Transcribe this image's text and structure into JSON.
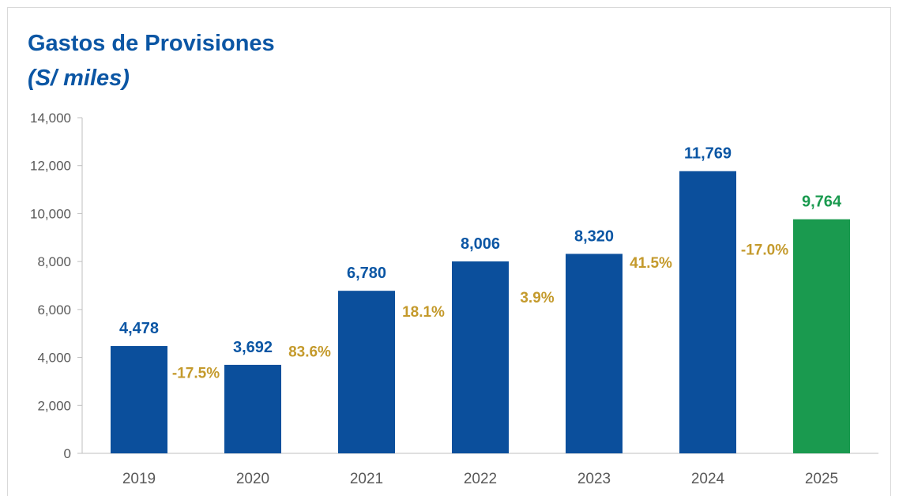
{
  "chart_data": {
    "type": "bar",
    "title": "Gastos de Provisiones",
    "subtitle": "(S/ miles)",
    "categories": [
      "2019",
      "2020",
      "2021",
      "2022",
      "2023",
      "2024",
      "2025"
    ],
    "values": [
      4478,
      3692,
      6780,
      8006,
      8320,
      11769,
      9764
    ],
    "value_labels": [
      "4,478",
      "3,692",
      "6,780",
      "8,006",
      "8,320",
      "11,769",
      "9,764"
    ],
    "growth_labels": [
      "-17.5%",
      "83.6%",
      "18.1%",
      "3.9%",
      "41.5%",
      "-17.0%"
    ],
    "ylim": [
      0,
      14000
    ],
    "yticks": [
      0,
      2000,
      4000,
      6000,
      8000,
      10000,
      12000,
      14000
    ],
    "ytick_labels": [
      "0",
      "2,000",
      "4,000",
      "6,000",
      "8,000",
      "10,000",
      "12,000",
      "14,000"
    ],
    "xlabel": "",
    "ylabel": "",
    "grid": false,
    "legend": "none",
    "colors": {
      "bar": "#0b4f9c",
      "bar_highlight": "#1a9a4f",
      "value_label": "#0b56a4",
      "value_label_highlight": "#1a9a4f",
      "growth_label": "#c49a2c",
      "axis": "#bfbfbf",
      "tick_text": "#595959"
    }
  }
}
